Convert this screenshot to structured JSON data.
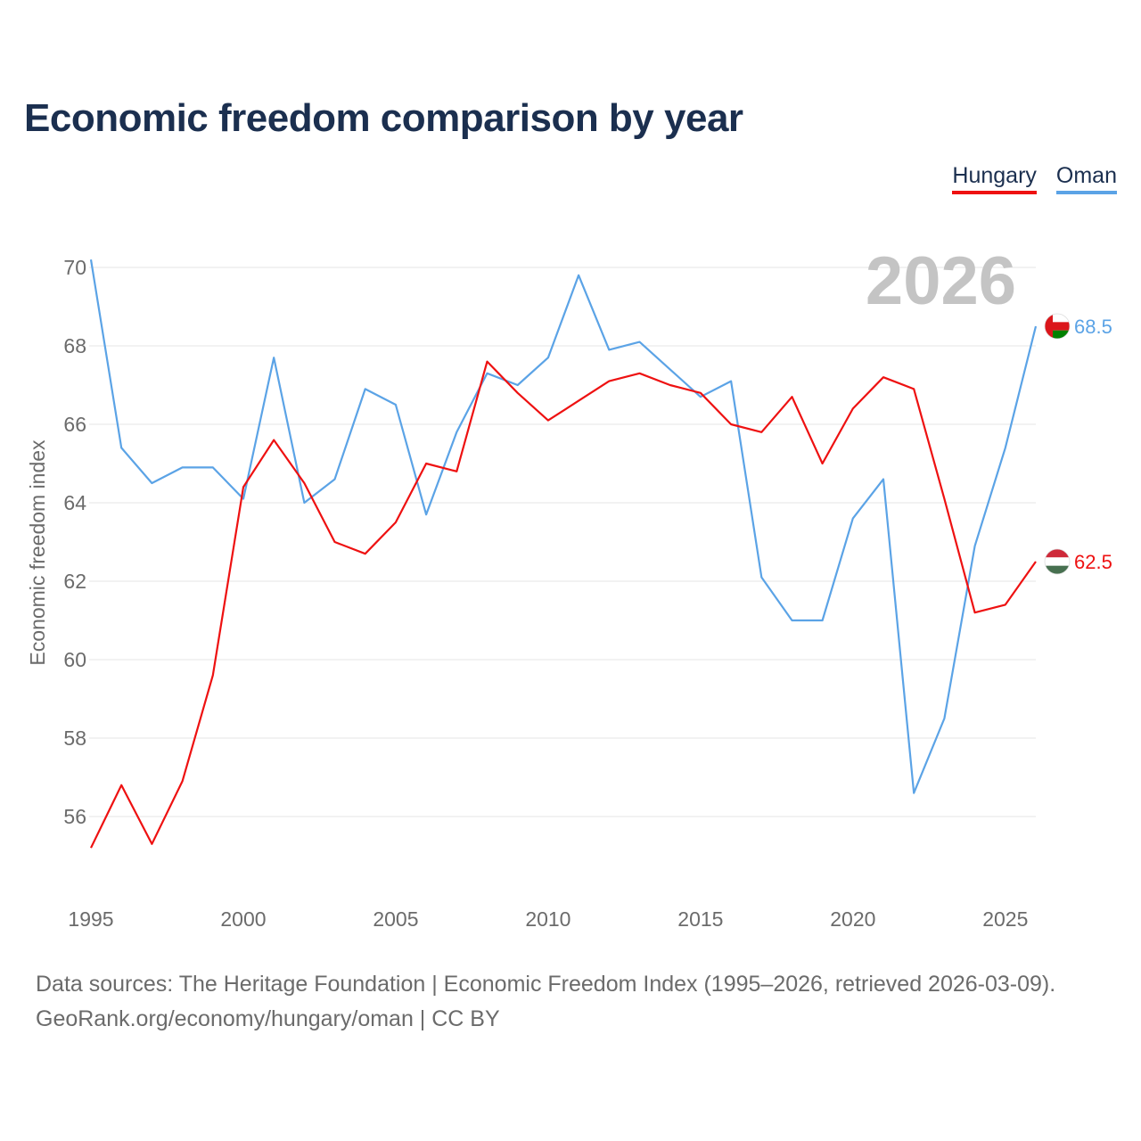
{
  "title": "Economic freedom comparison by year",
  "footer": {
    "source": "Data sources: The Heritage Foundation | Economic Freedom Index (1995–2026, retrieved 2026-03-09).",
    "credit": "GeoRank.org/economy/hungary/oman | CC BY"
  },
  "colors": {
    "hungary": "#ee1111",
    "oman": "#5ba3e6",
    "grid": "#e6e6e6",
    "title": "#1b2f4f"
  },
  "chart_data": {
    "type": "line",
    "title": "Economic freedom comparison by year",
    "xlabel": "",
    "ylabel": "Economic freedom index",
    "year_mark": "2026",
    "xlim": [
      1995,
      2026
    ],
    "ylim": [
      54,
      70
    ],
    "x_ticks": [
      "1995",
      "2000",
      "2005",
      "2010",
      "2015",
      "2020",
      "2025"
    ],
    "y_ticks": [
      "56",
      "58",
      "60",
      "62",
      "64",
      "66",
      "68",
      "70"
    ],
    "grid": true,
    "legend_position": "top-right",
    "x": [
      1995,
      1996,
      1997,
      1998,
      1999,
      2000,
      2001,
      2002,
      2003,
      2004,
      2005,
      2006,
      2007,
      2008,
      2009,
      2010,
      2011,
      2012,
      2013,
      2014,
      2015,
      2016,
      2017,
      2018,
      2019,
      2020,
      2021,
      2022,
      2023,
      2024,
      2025,
      2026
    ],
    "series": [
      {
        "name": "Hungary",
        "color": "#ee1111",
        "end_label": "62.5",
        "flag": "hungary-flag",
        "values": [
          55.2,
          56.8,
          55.3,
          56.9,
          59.6,
          64.4,
          65.6,
          64.5,
          63.0,
          62.7,
          63.5,
          65.0,
          64.8,
          67.6,
          66.8,
          66.1,
          66.6,
          67.1,
          67.3,
          67.0,
          66.8,
          66.0,
          65.8,
          66.7,
          65.0,
          66.4,
          67.2,
          66.9,
          64.1,
          61.2,
          61.4,
          62.5
        ]
      },
      {
        "name": "Oman",
        "color": "#5ba3e6",
        "end_label": "68.5",
        "flag": "oman-flag",
        "values": [
          70.2,
          65.4,
          64.5,
          64.9,
          64.9,
          64.1,
          67.7,
          64.0,
          64.6,
          66.9,
          66.5,
          63.7,
          65.8,
          67.3,
          67.0,
          67.7,
          69.8,
          67.9,
          68.1,
          67.4,
          66.7,
          67.1,
          62.1,
          61.0,
          61.0,
          63.6,
          64.6,
          56.6,
          58.5,
          62.9,
          65.4,
          68.5
        ]
      }
    ]
  }
}
